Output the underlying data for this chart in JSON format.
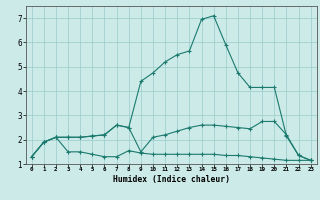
{
  "xlabel": "Humidex (Indice chaleur)",
  "background_color": "#cceae8",
  "grid_color": "#99cccc",
  "line_color": "#1a7a6e",
  "xlim": [
    -0.5,
    23.5
  ],
  "ylim": [
    1.0,
    7.5
  ],
  "xtick_labels": [
    "0",
    "1",
    "2",
    "3",
    "4",
    "5",
    "6",
    "7",
    "8",
    "9",
    "10",
    "11",
    "12",
    "13",
    "14",
    "15",
    "16",
    "17",
    "18",
    "19",
    "20",
    "21",
    "22",
    "23"
  ],
  "xtick_vals": [
    0,
    1,
    2,
    3,
    4,
    5,
    6,
    7,
    8,
    9,
    10,
    11,
    12,
    13,
    14,
    15,
    16,
    17,
    18,
    19,
    20,
    21,
    22,
    23
  ],
  "yticks": [
    1,
    2,
    3,
    4,
    5,
    6,
    7
  ],
  "line1_x": [
    0,
    1,
    2,
    3,
    4,
    5,
    6,
    7,
    8,
    9,
    10,
    11,
    12,
    13,
    14,
    15,
    16,
    17,
    18,
    19,
    20,
    21,
    22,
    23
  ],
  "line1_y": [
    1.3,
    1.9,
    2.1,
    1.5,
    1.5,
    1.4,
    1.3,
    1.3,
    1.55,
    1.45,
    1.4,
    1.4,
    1.4,
    1.4,
    1.4,
    1.4,
    1.35,
    1.35,
    1.3,
    1.25,
    1.2,
    1.15,
    1.15,
    1.15
  ],
  "line2_x": [
    0,
    1,
    2,
    3,
    4,
    5,
    6,
    7,
    8,
    9,
    10,
    11,
    12,
    13,
    14,
    15,
    16,
    17,
    18,
    19,
    20,
    21,
    22,
    23
  ],
  "line2_y": [
    1.3,
    1.9,
    2.1,
    2.1,
    2.1,
    2.15,
    2.2,
    2.6,
    2.5,
    1.5,
    2.1,
    2.2,
    2.35,
    2.5,
    2.6,
    2.6,
    2.55,
    2.5,
    2.45,
    2.75,
    2.75,
    2.2,
    1.35,
    1.15
  ],
  "line3_x": [
    0,
    1,
    2,
    3,
    4,
    5,
    6,
    7,
    8,
    9,
    10,
    11,
    12,
    13,
    14,
    15,
    16,
    17,
    18,
    19,
    20,
    21,
    22,
    23
  ],
  "line3_y": [
    1.3,
    1.9,
    2.1,
    2.1,
    2.1,
    2.15,
    2.2,
    2.6,
    2.5,
    4.4,
    4.75,
    5.2,
    5.5,
    5.65,
    6.95,
    7.1,
    5.9,
    4.75,
    4.15,
    4.15,
    4.15,
    2.15,
    1.35,
    1.15
  ]
}
